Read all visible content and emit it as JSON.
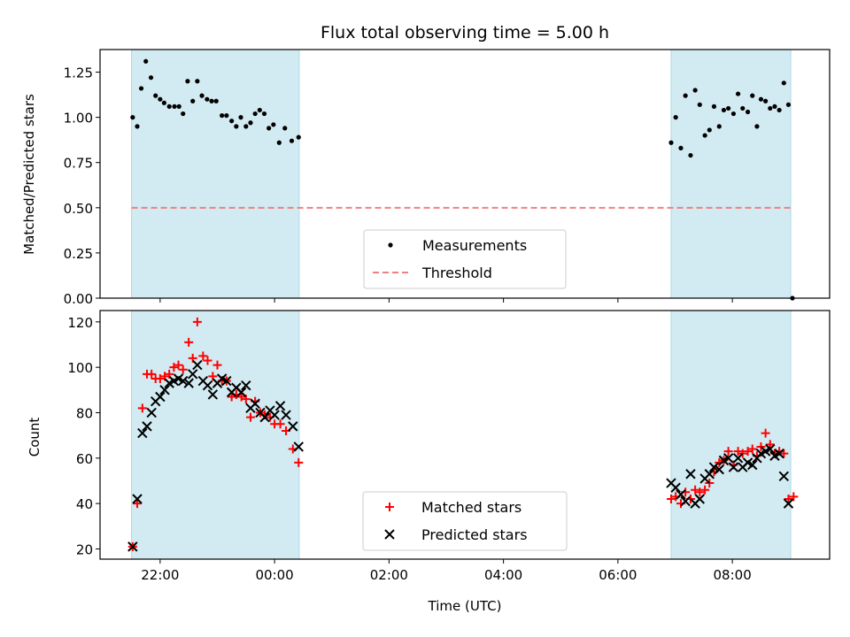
{
  "figure_title": "Flux total observing time = 5.00 h",
  "colors": {
    "shade": "#add8e6",
    "measurement": "#000000",
    "threshold": "#f08080",
    "matched": "#ff0000",
    "predicted": "#000000"
  },
  "x_tick_labels": [
    "22:00",
    "00:00",
    "02:00",
    "04:00",
    "06:00",
    "08:00"
  ],
  "chart_data": [
    {
      "type": "scatter",
      "panel": "top",
      "title": "Flux total observing time = 5.00 h",
      "xlabel": "",
      "ylabel": "Matched/Predicted stars",
      "x_unit": "hours after 00:00 UTC",
      "xlim": [
        -3.05,
        9.7
      ],
      "ylim": [
        0,
        1.375
      ],
      "yticks": [
        0.0,
        0.25,
        0.5,
        0.75,
        1.0,
        1.25
      ],
      "ytick_labels": [
        "0.00",
        "0.25",
        "0.50",
        "0.75",
        "1.00",
        "1.25"
      ],
      "shaded_intervals": [
        [
          -2.5,
          0.43
        ],
        [
          6.93,
          9.02
        ]
      ],
      "legend": {
        "placement": "lower center",
        "entries": [
          "Measurements",
          "Threshold"
        ]
      },
      "series": [
        {
          "name": "Measurements",
          "marker": "dot",
          "points": [
            [
              -2.48,
              1.0
            ],
            [
              -2.4,
              0.95
            ],
            [
              -2.33,
              1.16
            ],
            [
              -2.25,
              1.31
            ],
            [
              -2.16,
              1.22
            ],
            [
              -2.08,
              1.12
            ],
            [
              -2.0,
              1.1
            ],
            [
              -1.93,
              1.08
            ],
            [
              -1.84,
              1.06
            ],
            [
              -1.75,
              1.06
            ],
            [
              -1.67,
              1.06
            ],
            [
              -1.6,
              1.02
            ],
            [
              -1.52,
              1.2
            ],
            [
              -1.43,
              1.09
            ],
            [
              -1.35,
              1.2
            ],
            [
              -1.27,
              1.12
            ],
            [
              -1.18,
              1.1
            ],
            [
              -1.1,
              1.09
            ],
            [
              -1.02,
              1.09
            ],
            [
              -0.92,
              1.01
            ],
            [
              -0.84,
              1.01
            ],
            [
              -0.75,
              0.98
            ],
            [
              -0.67,
              0.95
            ],
            [
              -0.59,
              1.0
            ],
            [
              -0.5,
              0.95
            ],
            [
              -0.42,
              0.97
            ],
            [
              -0.34,
              1.02
            ],
            [
              -0.26,
              1.04
            ],
            [
              -0.18,
              1.02
            ],
            [
              -0.1,
              0.94
            ],
            [
              -0.02,
              0.96
            ],
            [
              0.08,
              0.86
            ],
            [
              0.18,
              0.94
            ],
            [
              0.3,
              0.87
            ],
            [
              0.42,
              0.89
            ],
            [
              6.93,
              0.86
            ],
            [
              7.01,
              1.0
            ],
            [
              7.1,
              0.83
            ],
            [
              7.18,
              1.12
            ],
            [
              7.27,
              0.79
            ],
            [
              7.35,
              1.15
            ],
            [
              7.43,
              1.07
            ],
            [
              7.52,
              0.9
            ],
            [
              7.6,
              0.93
            ],
            [
              7.68,
              1.06
            ],
            [
              7.77,
              0.95
            ],
            [
              7.85,
              1.04
            ],
            [
              7.93,
              1.05
            ],
            [
              8.02,
              1.02
            ],
            [
              8.1,
              1.13
            ],
            [
              8.18,
              1.05
            ],
            [
              8.27,
              1.03
            ],
            [
              8.35,
              1.12
            ],
            [
              8.43,
              0.95
            ],
            [
              8.5,
              1.1
            ],
            [
              8.58,
              1.09
            ],
            [
              8.66,
              1.05
            ],
            [
              8.74,
              1.06
            ],
            [
              8.82,
              1.04
            ],
            [
              8.9,
              1.19
            ],
            [
              8.98,
              1.07
            ],
            [
              9.05,
              0.0
            ]
          ]
        },
        {
          "name": "Threshold",
          "style": "dashed line",
          "x": [
            -2.5,
            9.05
          ],
          "y": [
            0.5,
            0.5
          ]
        }
      ]
    },
    {
      "type": "scatter",
      "panel": "bottom",
      "xlabel": "Time (UTC)",
      "ylabel": "Count",
      "x_unit": "hours after 00:00 UTC",
      "xlim": [
        -3.05,
        9.7
      ],
      "ylim": [
        15.5,
        125
      ],
      "yticks": [
        20,
        40,
        60,
        80,
        100,
        120
      ],
      "ytick_labels": [
        "20",
        "40",
        "60",
        "80",
        "100",
        "120"
      ],
      "shaded_intervals": [
        [
          -2.5,
          0.43
        ],
        [
          6.93,
          9.02
        ]
      ],
      "legend": {
        "placement": "lower center",
        "entries": [
          "Matched stars",
          "Predicted stars"
        ]
      },
      "series": [
        {
          "name": "Matched stars",
          "marker": "plus",
          "points": [
            [
              -2.48,
              21
            ],
            [
              -2.4,
              40
            ],
            [
              -2.31,
              82
            ],
            [
              -2.23,
              97
            ],
            [
              -2.15,
              97
            ],
            [
              -2.08,
              95
            ],
            [
              -2.0,
              95
            ],
            [
              -1.92,
              96
            ],
            [
              -1.84,
              97
            ],
            [
              -1.76,
              100
            ],
            [
              -1.68,
              101
            ],
            [
              -1.6,
              99
            ],
            [
              -1.5,
              111
            ],
            [
              -1.43,
              104
            ],
            [
              -1.35,
              120
            ],
            [
              -1.25,
              105
            ],
            [
              -1.17,
              103
            ],
            [
              -1.08,
              96
            ],
            [
              -1.0,
              101
            ],
            [
              -0.92,
              94
            ],
            [
              -0.84,
              94
            ],
            [
              -0.75,
              87
            ],
            [
              -0.67,
              88
            ],
            [
              -0.58,
              87
            ],
            [
              -0.5,
              86
            ],
            [
              -0.42,
              78
            ],
            [
              -0.34,
              85
            ],
            [
              -0.25,
              80
            ],
            [
              -0.17,
              79
            ],
            [
              -0.08,
              78
            ],
            [
              0.0,
              75
            ],
            [
              0.1,
              75
            ],
            [
              0.2,
              72
            ],
            [
              0.32,
              64
            ],
            [
              0.42,
              58
            ],
            [
              6.93,
              42
            ],
            [
              7.01,
              43
            ],
            [
              7.1,
              40
            ],
            [
              7.18,
              45
            ],
            [
              7.27,
              42
            ],
            [
              7.35,
              46
            ],
            [
              7.43,
              45
            ],
            [
              7.52,
              46
            ],
            [
              7.6,
              49
            ],
            [
              7.68,
              54
            ],
            [
              7.77,
              58
            ],
            [
              7.85,
              59
            ],
            [
              7.93,
              63
            ],
            [
              8.02,
              57
            ],
            [
              8.1,
              63
            ],
            [
              8.18,
              62
            ],
            [
              8.27,
              63
            ],
            [
              8.35,
              64
            ],
            [
              8.43,
              61
            ],
            [
              8.5,
              65
            ],
            [
              8.58,
              71
            ],
            [
              8.66,
              66
            ],
            [
              8.74,
              62
            ],
            [
              8.82,
              63
            ],
            [
              8.9,
              62
            ],
            [
              8.98,
              42
            ],
            [
              9.07,
              43
            ]
          ]
        },
        {
          "name": "Predicted stars",
          "marker": "x",
          "points": [
            [
              -2.48,
              21
            ],
            [
              -2.4,
              42
            ],
            [
              -2.31,
              71
            ],
            [
              -2.23,
              74
            ],
            [
              -2.15,
              80
            ],
            [
              -2.08,
              85
            ],
            [
              -2.0,
              87
            ],
            [
              -1.92,
              90
            ],
            [
              -1.84,
              93
            ],
            [
              -1.76,
              94
            ],
            [
              -1.68,
              95
            ],
            [
              -1.6,
              94
            ],
            [
              -1.5,
              93
            ],
            [
              -1.43,
              97
            ],
            [
              -1.35,
              101
            ],
            [
              -1.25,
              94
            ],
            [
              -1.17,
              92
            ],
            [
              -1.08,
              88
            ],
            [
              -1.0,
              93
            ],
            [
              -0.92,
              95
            ],
            [
              -0.84,
              94
            ],
            [
              -0.75,
              89
            ],
            [
              -0.67,
              91
            ],
            [
              -0.58,
              89
            ],
            [
              -0.5,
              92
            ],
            [
              -0.42,
              82
            ],
            [
              -0.34,
              84
            ],
            [
              -0.25,
              80
            ],
            [
              -0.17,
              78
            ],
            [
              -0.08,
              81
            ],
            [
              0.0,
              79
            ],
            [
              0.1,
              83
            ],
            [
              0.2,
              79
            ],
            [
              0.32,
              74
            ],
            [
              0.42,
              65
            ],
            [
              6.93,
              49
            ],
            [
              7.01,
              47
            ],
            [
              7.1,
              44
            ],
            [
              7.18,
              41
            ],
            [
              7.27,
              53
            ],
            [
              7.35,
              40
            ],
            [
              7.43,
              42
            ],
            [
              7.52,
              51
            ],
            [
              7.6,
              53
            ],
            [
              7.68,
              56
            ],
            [
              7.77,
              55
            ],
            [
              7.85,
              59
            ],
            [
              7.93,
              60
            ],
            [
              8.02,
              56
            ],
            [
              8.1,
              60
            ],
            [
              8.18,
              56
            ],
            [
              8.27,
              58
            ],
            [
              8.35,
              57
            ],
            [
              8.43,
              60
            ],
            [
              8.5,
              62
            ],
            [
              8.58,
              63
            ],
            [
              8.66,
              64
            ],
            [
              8.74,
              61
            ],
            [
              8.82,
              62
            ],
            [
              8.9,
              52
            ],
            [
              8.98,
              40
            ]
          ]
        }
      ]
    }
  ]
}
